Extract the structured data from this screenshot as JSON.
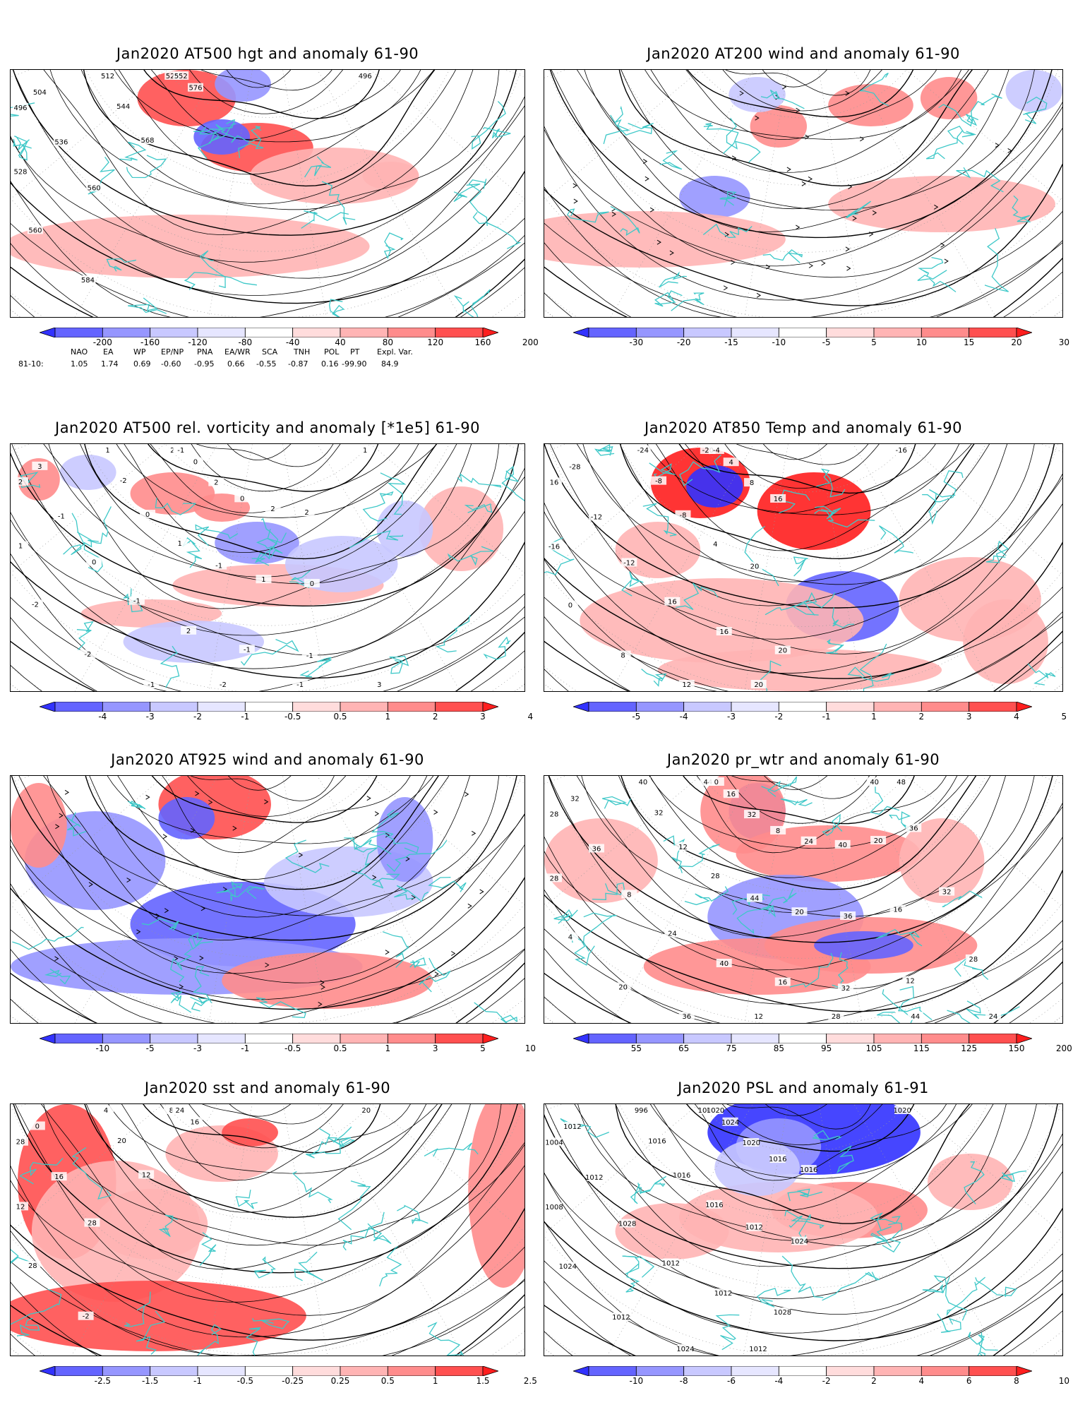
{
  "panels": [
    {
      "title": "Jan2020 AT500 hgt and anomaly 61-90",
      "levels": [
        "-200",
        "-160",
        "-120",
        "-80",
        "-40",
        "40",
        "80",
        "120",
        "160",
        "200"
      ],
      "colors": [
        "#3232ff",
        "#6464ff",
        "#9696ff",
        "#c8c8ff",
        "#e6e6ff",
        "#ffffff",
        "#ffdcdc",
        "#ffb4b4",
        "#ff8c8c",
        "#ff5050",
        "#ff1e1e"
      ],
      "contour_labels": [
        "496",
        "496",
        "504",
        "512",
        "520",
        "528",
        "536",
        "544",
        "552",
        "560",
        "560",
        "568",
        "576",
        "584"
      ]
    },
    {
      "title": "Jan2020 AT200 wind and anomaly 61-90",
      "levels": [
        "-30",
        "-20",
        "-15",
        "-10",
        "-5",
        "5",
        "10",
        "15",
        "20",
        "30"
      ],
      "colors": [
        "#3232ff",
        "#6464ff",
        "#9696ff",
        "#c8c8ff",
        "#e6e6ff",
        "#ffffff",
        "#ffdcdc",
        "#ffb4b4",
        "#ff8c8c",
        "#ff5050",
        "#ff1e1e"
      ],
      "contour_labels": []
    },
    {
      "title": "Jan2020 AT500 rel. vorticity and anomaly [*1e5] 61-90",
      "levels": [
        "-4",
        "-3",
        "-2",
        "-1",
        "-0.5",
        "0.5",
        "1",
        "2",
        "3",
        "4"
      ],
      "colors": [
        "#3232ff",
        "#6464ff",
        "#9696ff",
        "#c8c8ff",
        "#e6e6ff",
        "#ffffff",
        "#ffdcdc",
        "#ffb4b4",
        "#ff8c8c",
        "#ff5050",
        "#ff1e1e"
      ],
      "contour_labels": [
        "1",
        "2",
        "3",
        "1",
        "2",
        "1",
        "-1",
        "-2",
        "-1",
        "-2",
        "0",
        "0",
        "0",
        "-2",
        "-1",
        "1",
        "2",
        "-1",
        "2",
        "-1",
        "0",
        "-2",
        "-1",
        "1",
        "2",
        "-1",
        "-1",
        "0",
        "2",
        "3"
      ]
    },
    {
      "title": "Jan2020 AT850 Temp and anomaly 61-90",
      "levels": [
        "-5",
        "-4",
        "-3",
        "-2",
        "-1",
        "1",
        "2",
        "3",
        "4",
        "5"
      ],
      "colors": [
        "#3232ff",
        "#6464ff",
        "#9696ff",
        "#c8c8ff",
        "#e6e6ff",
        "#ffffff",
        "#ffdcdc",
        "#ffb4b4",
        "#ff8c8c",
        "#ff5050",
        "#ff1e1e"
      ],
      "contour_labels": [
        "-16",
        "16",
        "-28",
        "-24",
        "-20",
        "-16",
        "-12",
        "-8",
        "-4",
        "0",
        "-12",
        "-8",
        "4",
        "8",
        "16",
        "4",
        "8",
        "12",
        "16",
        "20",
        "16",
        "20",
        "20"
      ]
    },
    {
      "title": "Jan2020 AT925 wind and anomaly 61-90",
      "levels": [
        "-10",
        "-5",
        "-3",
        "-1",
        "-0.5",
        "0.5",
        "1",
        "3",
        "5",
        "10"
      ],
      "colors": [
        "#3232ff",
        "#6464ff",
        "#9696ff",
        "#c8c8ff",
        "#e6e6ff",
        "#ffffff",
        "#ffdcdc",
        "#ffb4b4",
        "#ff8c8c",
        "#ff5050",
        "#ff1e1e"
      ],
      "contour_labels": []
    },
    {
      "title": "Jan2020 pr_wtr and anomaly 61-90",
      "levels": [
        "55",
        "65",
        "75",
        "85",
        "95",
        "105",
        "115",
        "125",
        "150",
        "200"
      ],
      "colors": [
        "#3232ff",
        "#6464ff",
        "#9696ff",
        "#c8c8ff",
        "#e6e6ff",
        "#ffffff",
        "#ffdcdc",
        "#ffb4b4",
        "#ff8c8c",
        "#ff5050",
        "#ff1e1e"
      ],
      "contour_labels": [
        "48",
        "28",
        "32",
        "40",
        "44",
        "28",
        "36",
        "32",
        "0",
        "4",
        "8",
        "12",
        "16",
        "20",
        "24",
        "28",
        "32",
        "36",
        "40",
        "44",
        "8",
        "12",
        "16",
        "20",
        "24",
        "28",
        "32",
        "36",
        "40",
        "44",
        "12",
        "16",
        "20",
        "24",
        "28",
        "32",
        "36",
        "40"
      ]
    },
    {
      "title": "Jan2020 sst and anomaly 61-90",
      "levels": [
        "-2.5",
        "-1.5",
        "-1",
        "-0.5",
        "-0.25",
        "0.25",
        "0.5",
        "1",
        "1.5",
        "2.5"
      ],
      "colors": [
        "#3232ff",
        "#6464ff",
        "#9696ff",
        "#c8c8ff",
        "#e6e6ff",
        "#ffffff",
        "#ffdcdc",
        "#ffb4b4",
        "#ff8c8c",
        "#ff5050",
        "#ff1e1e"
      ],
      "contour_labels": [
        "20",
        "28",
        "0",
        "4",
        "8",
        "12",
        "16",
        "20",
        "24",
        "28",
        "28",
        "12",
        "16",
        "-2"
      ]
    },
    {
      "title": "Jan2020 PSL and anomaly 61-91",
      "levels": [
        "-10",
        "-8",
        "-6",
        "-4",
        "-2",
        "2",
        "4",
        "6",
        "8",
        "10"
      ],
      "colors": [
        "#3232ff",
        "#6464ff",
        "#9696ff",
        "#c8c8ff",
        "#e6e6ff",
        "#ffffff",
        "#ffdcdc",
        "#ffb4b4",
        "#ff8c8c",
        "#ff5050",
        "#ff1e1e"
      ],
      "contour_labels": [
        "1020",
        "1004",
        "1012",
        "996",
        "1000",
        "1008",
        "1012",
        "1016",
        "1020",
        "1024",
        "1028",
        "1016",
        "1024",
        "1012",
        "1012",
        "1016",
        "1020",
        "1024",
        "1012",
        "1012",
        "1016",
        "1012",
        "1028",
        "1024",
        "1016"
      ]
    }
  ],
  "teleconnection": {
    "headers": [
      "NAO",
      "EA",
      "WP",
      "EP/NP",
      "PNA",
      "EA/WR",
      "SCA",
      "TNH",
      "POL",
      "PT",
      "Expl. Var."
    ],
    "row_label": "81-10:",
    "values": [
      "1.05",
      "1.74",
      "0.69",
      "-0.60",
      "-0.95",
      "0.66",
      "-0.55",
      "-0.87",
      "0.16",
      "-99.90",
      "84.9"
    ]
  },
  "map_colors": {
    "coast": "#3ec8c8",
    "contour": "#000000",
    "grid": "#999999"
  }
}
